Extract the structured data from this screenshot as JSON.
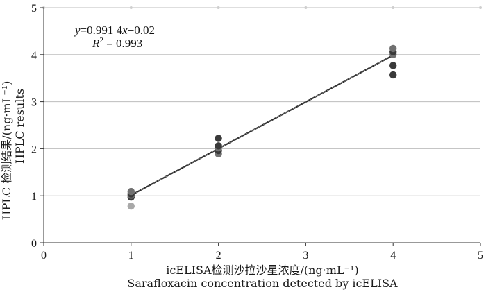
{
  "chart_data": {
    "type": "scatter",
    "title": "",
    "xlabel": [
      "icELISA检测沙拉沙星浓度/(ng·mL⁻¹)",
      "Sarafloxacin concentration detected by icELISA"
    ],
    "ylabel": [
      "HPLC 检测结果/(ng·mL⁻¹)",
      "HPLC results"
    ],
    "xlim": [
      0,
      5
    ],
    "ylim": [
      0,
      5
    ],
    "xticks": [
      "0",
      "1",
      "2",
      "3",
      "4",
      "5"
    ],
    "yticks": [
      "0",
      "1",
      "2",
      "3",
      "4",
      "5"
    ],
    "grid": "horizontal",
    "series": [
      {
        "points": [
          {
            "x": 1,
            "y": 0.78,
            "shade": "light"
          },
          {
            "x": 1,
            "y": 0.97,
            "shade": "dark"
          },
          {
            "x": 1,
            "y": 1.01,
            "shade": "mid"
          },
          {
            "x": 1,
            "y": 1.04,
            "shade": "dark"
          },
          {
            "x": 1,
            "y": 1.09,
            "shade": "mid"
          },
          {
            "x": 2,
            "y": 1.89,
            "shade": "mid"
          },
          {
            "x": 2,
            "y": 1.96,
            "shade": "dark"
          },
          {
            "x": 2,
            "y": 2.02,
            "shade": "mid"
          },
          {
            "x": 2,
            "y": 2.06,
            "shade": "dark"
          },
          {
            "x": 2,
            "y": 2.22,
            "shade": "dark"
          },
          {
            "x": 4,
            "y": 3.57,
            "shade": "dark"
          },
          {
            "x": 4,
            "y": 3.77,
            "shade": "dark"
          },
          {
            "x": 4,
            "y": 4.0,
            "shade": "mid"
          },
          {
            "x": 4,
            "y": 4.06,
            "shade": "dark"
          },
          {
            "x": 4,
            "y": 4.13,
            "shade": "mid"
          }
        ]
      }
    ],
    "fit": {
      "slope": 0.9914,
      "intercept": 0.02,
      "x_range": [
        1,
        4
      ],
      "equation_label": {
        "y": "y",
        "body": "=0.991 4",
        "x": "x",
        "rest": "+0.02"
      },
      "r2_label": {
        "r": "R",
        "sup": "2",
        "rest": " = 0.993"
      }
    },
    "colors": {
      "grid": "#bdbdbd",
      "axis": "#333333",
      "fit_line": "#555555",
      "dark": "#3a3a3a",
      "mid": "#707070",
      "light": "#a8a8a8"
    }
  }
}
